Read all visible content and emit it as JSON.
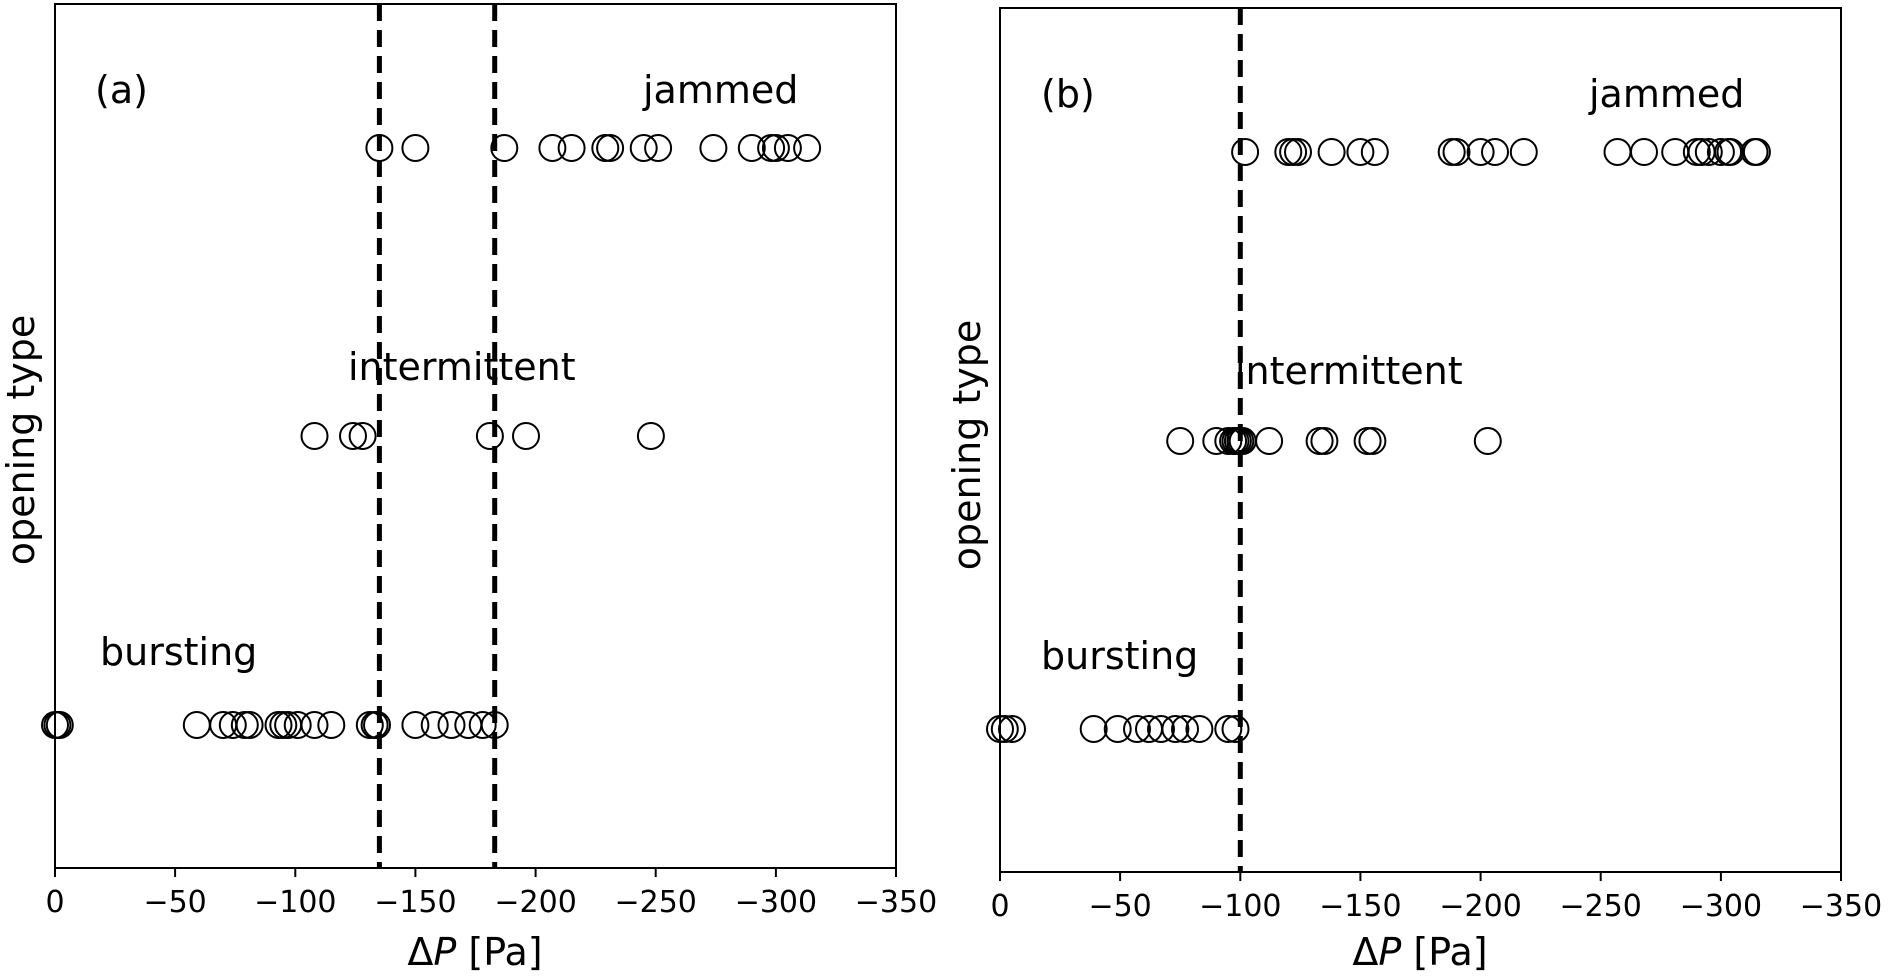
{
  "chart_data": [
    {
      "type": "scatter",
      "panel_label": "(a)",
      "xlabel_prefix": "Δ",
      "xlabel_var": "P",
      "xlabel_suffix": " [Pa]",
      "ylabel": "opening type",
      "xlim": [
        0,
        -350
      ],
      "xticks": [
        0,
        -50,
        -100,
        -150,
        -200,
        -250,
        -300,
        -350
      ],
      "xticklabels": [
        "0",
        "−50",
        "−100",
        "−150",
        "−200",
        "−250",
        "−300",
        "−350"
      ],
      "grid": false,
      "vlines": [
        -135,
        -183
      ],
      "rows": [
        {
          "name": "jammed",
          "level": 3,
          "x": [
            -135,
            -150,
            -187,
            -207,
            -215,
            -229,
            -231,
            -245,
            -251,
            -274,
            -290,
            -298,
            -300,
            -305,
            -313
          ]
        },
        {
          "name": "intermittent",
          "level": 2,
          "x": [
            -108,
            -124,
            -128,
            -181,
            -196,
            -248
          ]
        },
        {
          "name": "bursting",
          "level": 1,
          "x": [
            0,
            -1,
            -2,
            -59,
            -70,
            -74,
            -79,
            -81,
            -93,
            -95,
            -97,
            -101,
            -108,
            -115,
            -131,
            -133,
            -134,
            -150,
            -158,
            -165,
            -172,
            -178,
            -183
          ]
        }
      ]
    },
    {
      "type": "scatter",
      "panel_label": "(b)",
      "xlabel_prefix": "Δ",
      "xlabel_var": "P",
      "xlabel_suffix": " [Pa]",
      "ylabel": "opening type",
      "xlim": [
        0,
        -350
      ],
      "xticks": [
        0,
        -50,
        -100,
        -150,
        -200,
        -250,
        -300,
        -350
      ],
      "xticklabels": [
        "0",
        "−50",
        "−100",
        "−150",
        "−200",
        "−250",
        "−300",
        "−350"
      ],
      "grid": false,
      "vlines": [
        -100
      ],
      "rows": [
        {
          "name": "jammed",
          "level": 3,
          "x": [
            -102,
            -120,
            -122,
            -124,
            -138,
            -150,
            -156,
            -188,
            -190,
            -200,
            -206,
            -218,
            -257,
            -268,
            -281,
            -290,
            -292,
            -295,
            -300,
            -303,
            -304,
            -314,
            -315
          ]
        },
        {
          "name": "intermittent",
          "level": 2,
          "x": [
            -75,
            -90,
            -95,
            -97,
            -98,
            -99,
            -100,
            -101,
            -112,
            -133,
            -135,
            -153,
            -155,
            -203
          ]
        },
        {
          "name": "bursting",
          "level": 1,
          "x": [
            0,
            -2,
            -5,
            -39,
            -49,
            -57,
            -62,
            -67,
            -73,
            -77,
            -83,
            -95,
            -98
          ]
        }
      ]
    }
  ]
}
